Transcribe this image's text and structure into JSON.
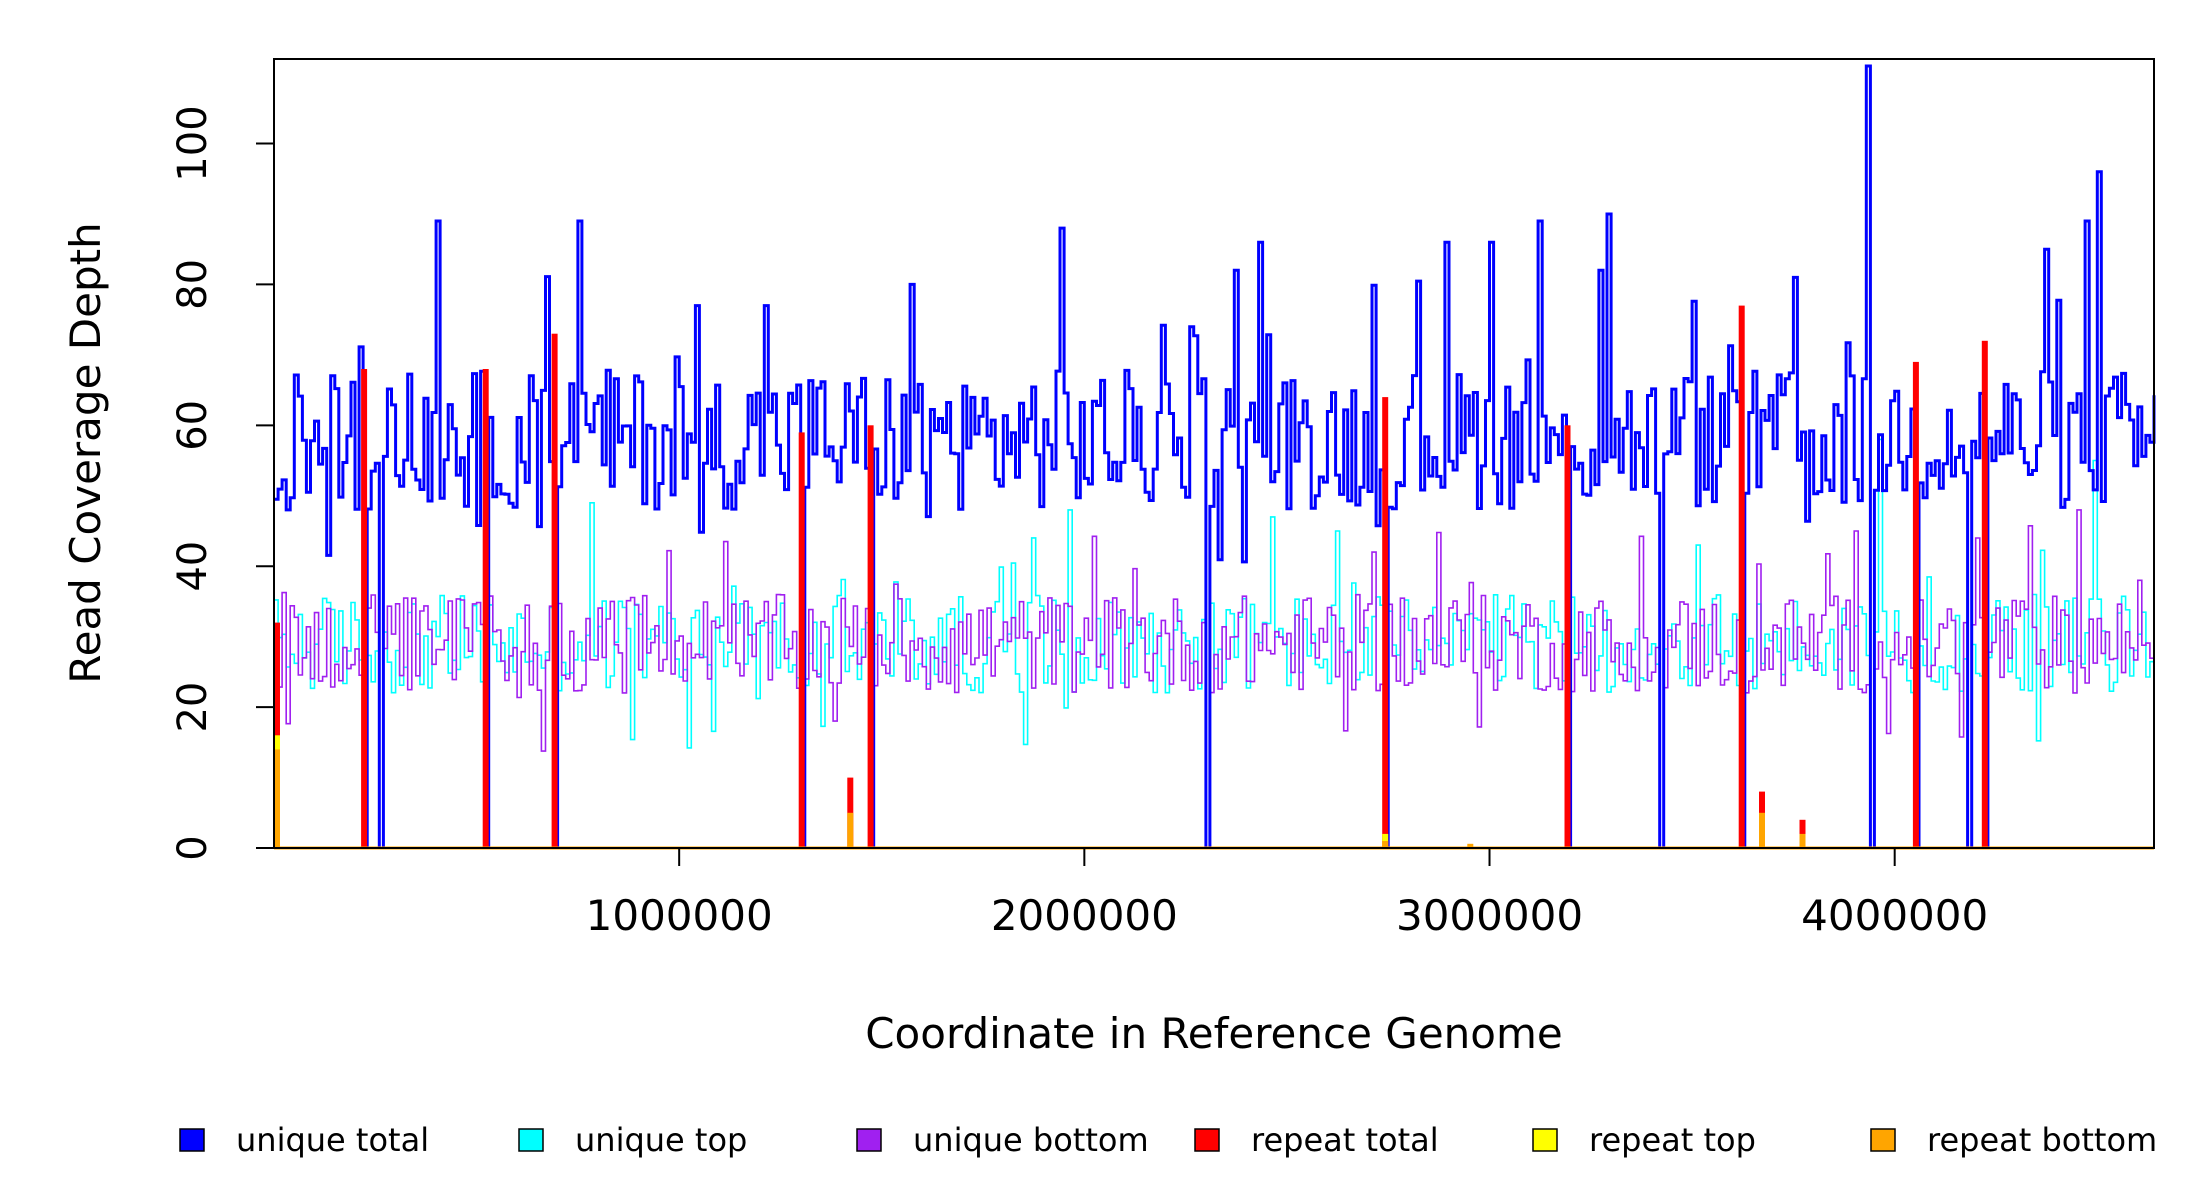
{
  "chart_data": {
    "type": "line",
    "title": "",
    "xlabel": "Coordinate in Reference Genome",
    "ylabel": "Read Coverage Depth",
    "xlim": [
      0,
      4640000
    ],
    "ylim": [
      0,
      112
    ],
    "x_ticks": [
      1000000,
      2000000,
      3000000,
      4000000
    ],
    "x_tick_labels": [
      "1000000",
      "2000000",
      "3000000",
      "4000000"
    ],
    "y_ticks": [
      0,
      20,
      40,
      60,
      80,
      100
    ],
    "y_tick_labels": [
      "0",
      "20",
      "40",
      "60",
      "80",
      "100"
    ],
    "bin_size": 10000,
    "step_interpolation": "step",
    "gap_positions": [
      220000,
      260000,
      520000,
      690000,
      1300000,
      1470000,
      2300000,
      2740000,
      3190000,
      3420000,
      3620000,
      3940000,
      4050000,
      4180000,
      4220000
    ],
    "series": [
      {
        "name": "unique total",
        "color": "#0000ff",
        "baseline": 58,
        "spread": 10,
        "spike_points": [
          [
            30000,
            48
          ],
          [
            400000,
            89
          ],
          [
            750000,
            89
          ],
          [
            1040000,
            77
          ],
          [
            1210000,
            77
          ],
          [
            1570000,
            80
          ],
          [
            1940000,
            88
          ],
          [
            2260000,
            74
          ],
          [
            2370000,
            82
          ],
          [
            2430000,
            86
          ],
          [
            2890000,
            86
          ],
          [
            3000000,
            86
          ],
          [
            3120000,
            89
          ],
          [
            3270000,
            82
          ],
          [
            3290000,
            90
          ],
          [
            3750000,
            81
          ],
          [
            3930000,
            111
          ],
          [
            4370000,
            85
          ],
          [
            4470000,
            89
          ],
          [
            4500000,
            96
          ]
        ]
      },
      {
        "name": "unique top",
        "color": "#00ffff",
        "baseline": 29,
        "spread": 7,
        "spike_points": [
          [
            780000,
            49
          ],
          [
            1960000,
            48
          ],
          [
            2460000,
            47
          ],
          [
            2620000,
            45
          ],
          [
            3510000,
            43
          ],
          [
            3960000,
            58
          ],
          [
            4490000,
            55
          ]
        ]
      },
      {
        "name": "unique bottom",
        "color": "#a020f0",
        "baseline": 29,
        "spread": 7,
        "spike_points": [
          [
            2710000,
            42
          ],
          [
            3900000,
            45
          ],
          [
            4200000,
            44
          ],
          [
            4450000,
            48
          ],
          [
            4600000,
            38
          ]
        ]
      },
      {
        "name": "repeat total",
        "color": "#ff0000",
        "spikes": [
          [
            5000,
            32
          ],
          [
            220000,
            68
          ],
          [
            520000,
            68
          ],
          [
            690000,
            73
          ],
          [
            1300000,
            59
          ],
          [
            1420000,
            10
          ],
          [
            1470000,
            60
          ],
          [
            2740000,
            64
          ],
          [
            3190000,
            60
          ],
          [
            3620000,
            77
          ],
          [
            3670000,
            8
          ],
          [
            3770000,
            4
          ],
          [
            4050000,
            69
          ],
          [
            4220000,
            72
          ]
        ]
      },
      {
        "name": "repeat top",
        "color": "#ffff00",
        "spikes": [
          [
            5000,
            16
          ],
          [
            2740000,
            2
          ]
        ]
      },
      {
        "name": "repeat bottom",
        "color": "#ffa500",
        "spikes": [
          [
            5000,
            14
          ],
          [
            1420000,
            5
          ],
          [
            2740000,
            1
          ],
          [
            2950000,
            0.6
          ],
          [
            3670000,
            5
          ],
          [
            3770000,
            2
          ]
        ]
      }
    ],
    "legend": {
      "placement": "bottom",
      "entries": [
        {
          "label": "unique total",
          "color": "#0000ff"
        },
        {
          "label": "unique top",
          "color": "#00ffff"
        },
        {
          "label": "unique bottom",
          "color": "#a020f0"
        },
        {
          "label": "repeat total",
          "color": "#ff0000"
        },
        {
          "label": "repeat top",
          "color": "#ffff00"
        },
        {
          "label": "repeat bottom",
          "color": "#ffa500"
        }
      ]
    }
  }
}
